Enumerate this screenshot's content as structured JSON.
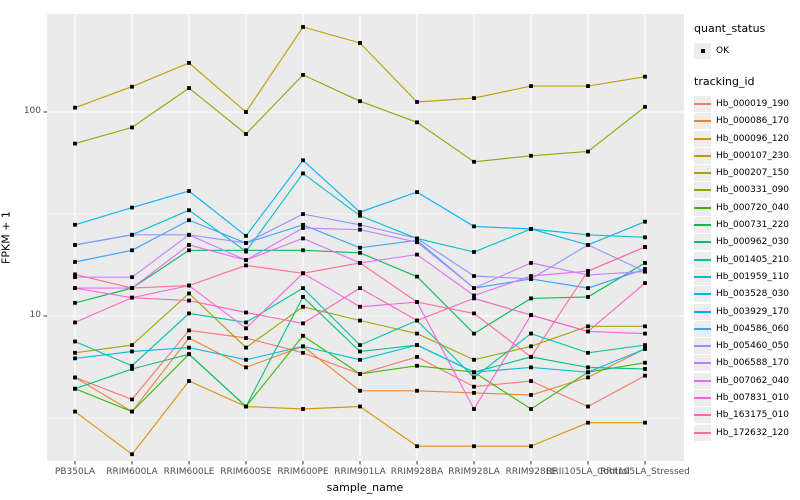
{
  "chart": {
    "y_axis_title": "FPKM + 1",
    "x_axis_title": "sample_name",
    "y_tick_labels": [
      "100",
      "10"
    ],
    "legend": {
      "quant_status_title": "quant_status",
      "quant_status_items": [
        "OK"
      ],
      "tracking_id_title": "tracking_id"
    },
    "colors": {
      "panel_background": "#ebebeb",
      "gridline": "#ffffff",
      "point": "#000000",
      "axis_text": "#4d4d4d",
      "legend_key_background": "#ededed"
    }
  },
  "chart_data": {
    "type": "line",
    "title": "",
    "xlabel": "sample_name",
    "ylabel": "FPKM + 1",
    "y_scale": "log10",
    "ylim": [
      1.95,
      302
    ],
    "y_major_ticks": [
      10,
      100
    ],
    "y_minor_ticks": [
      3.1623,
      31.623
    ],
    "grid": "on",
    "legend_position": "right",
    "point_marker": "black square, quant_status = OK",
    "categories": [
      "PB350LA",
      "RRIM600LA",
      "RRIM600LE",
      "RRIM600SE",
      "RRIM600PE",
      "RRIM901LA",
      "RRIM928BA",
      "RRIM928LA",
      "RRIM928LE",
      "RRII105LA_Control",
      "RRII105LA_Stressed"
    ],
    "series": [
      {
        "name": "Hb_000019_190",
        "color": "#F8766D",
        "values": [
          5.0,
          3.9,
          8.5,
          7.8,
          6.6,
          5.2,
          6.3,
          4.5,
          4.8,
          3.6,
          5.1
        ]
      },
      {
        "name": "Hb_000086_170",
        "color": "#EA8331",
        "values": [
          5.0,
          3.4,
          7.8,
          5.6,
          7.1,
          4.3,
          4.3,
          4.2,
          4.1,
          5.0,
          6.9
        ]
      },
      {
        "name": "Hb_000096_120",
        "color": "#D89000",
        "values": [
          3.4,
          2.1,
          4.8,
          3.6,
          3.5,
          3.6,
          2.3,
          2.3,
          2.3,
          3.0,
          3.0
        ]
      },
      {
        "name": "Hb_000107_230",
        "color": "#C09B00",
        "values": [
          105,
          133,
          174,
          100,
          261,
          218,
          112,
          117,
          134,
          134,
          149
        ]
      },
      {
        "name": "Hb_000207_150",
        "color": "#A3A500",
        "values": [
          6.6,
          7.2,
          12.9,
          7.0,
          11.1,
          9.5,
          8.2,
          6.1,
          7.1,
          8.9,
          8.9
        ]
      },
      {
        "name": "Hb_000331_090",
        "color": "#7CAE00",
        "values": [
          70,
          84,
          131,
          78,
          152,
          113,
          89,
          57,
          61,
          64,
          106
        ]
      },
      {
        "name": "Hb_000720_040",
        "color": "#39B600",
        "values": [
          4.4,
          3.4,
          6.5,
          3.6,
          8.0,
          5.2,
          5.7,
          5.3,
          3.5,
          5.3,
          5.9
        ]
      },
      {
        "name": "Hb_000731_220",
        "color": "#00BB4E",
        "values": [
          11.6,
          13.7,
          21.0,
          21.0,
          21.0,
          20.4,
          15.6,
          8.2,
          12.2,
          12.4,
          18.2
        ]
      },
      {
        "name": "Hb_000962_030",
        "color": "#00BF7D",
        "values": [
          4.4,
          5.5,
          6.5,
          3.6,
          12.4,
          6.7,
          7.2,
          5.3,
          6.3,
          5.6,
          5.5
        ]
      },
      {
        "name": "Hb_001405_210",
        "color": "#00C1A3",
        "values": [
          7.5,
          5.7,
          10.3,
          9.3,
          13.7,
          7.2,
          9.5,
          5.0,
          8.2,
          6.6,
          7.2
        ]
      },
      {
        "name": "Hb_001959_110",
        "color": "#00BFC4",
        "values": [
          22.3,
          25.0,
          33.0,
          20.7,
          50.0,
          31.0,
          24.0,
          20.6,
          26.7,
          25.0,
          24.3
        ]
      },
      {
        "name": "Hb_003528_030",
        "color": "#00BAE0",
        "values": [
          6.2,
          6.7,
          7.0,
          6.1,
          7.1,
          6.1,
          7.2,
          5.3,
          5.6,
          5.3,
          6.9
        ]
      },
      {
        "name": "Hb_003929_170",
        "color": "#00B0F6",
        "values": [
          28,
          34,
          41,
          24.7,
          58,
          32.3,
          40.5,
          27.5,
          26.7,
          22.3,
          29
        ]
      },
      {
        "name": "Hb_004586_060",
        "color": "#35A2FF",
        "values": [
          18.4,
          21,
          29.5,
          22.8,
          28,
          21.6,
          23.5,
          13.7,
          15.2,
          13.7,
          17
        ]
      },
      {
        "name": "Hb_005460_050",
        "color": "#9590FF",
        "values": [
          22.3,
          25,
          25,
          22.8,
          31.6,
          28,
          24,
          15.7,
          15.2,
          22.3,
          16.5
        ]
      },
      {
        "name": "Hb_006588_170",
        "color": "#C77CFF",
        "values": [
          15.5,
          15.5,
          25,
          18.8,
          27,
          26.5,
          23,
          13.7,
          18.2,
          15.9,
          16.5
        ]
      },
      {
        "name": "Hb_007062_040",
        "color": "#E76BF3",
        "values": [
          13.7,
          13.7,
          22.3,
          18.8,
          24,
          18.2,
          20,
          12.6,
          15.7,
          16.6,
          21.8
        ]
      },
      {
        "name": "Hb_007831_010",
        "color": "#FA62DB",
        "values": [
          13.7,
          12.3,
          14.1,
          8.7,
          16.2,
          11.1,
          11.7,
          3.5,
          10.1,
          8.4,
          8.2
        ]
      },
      {
        "name": "Hb_163175_010",
        "color": "#FF62BC",
        "values": [
          9.3,
          12.3,
          11.9,
          10.4,
          9.2,
          13.7,
          9.5,
          12.2,
          10.1,
          8.4,
          14.5
        ]
      },
      {
        "name": "Hb_172632_120",
        "color": "#FF6A98",
        "values": [
          16.0,
          13.7,
          14.1,
          17.7,
          16.2,
          18.2,
          11.7,
          10.3,
          6.3,
          16.6,
          21.8
        ]
      }
    ]
  }
}
